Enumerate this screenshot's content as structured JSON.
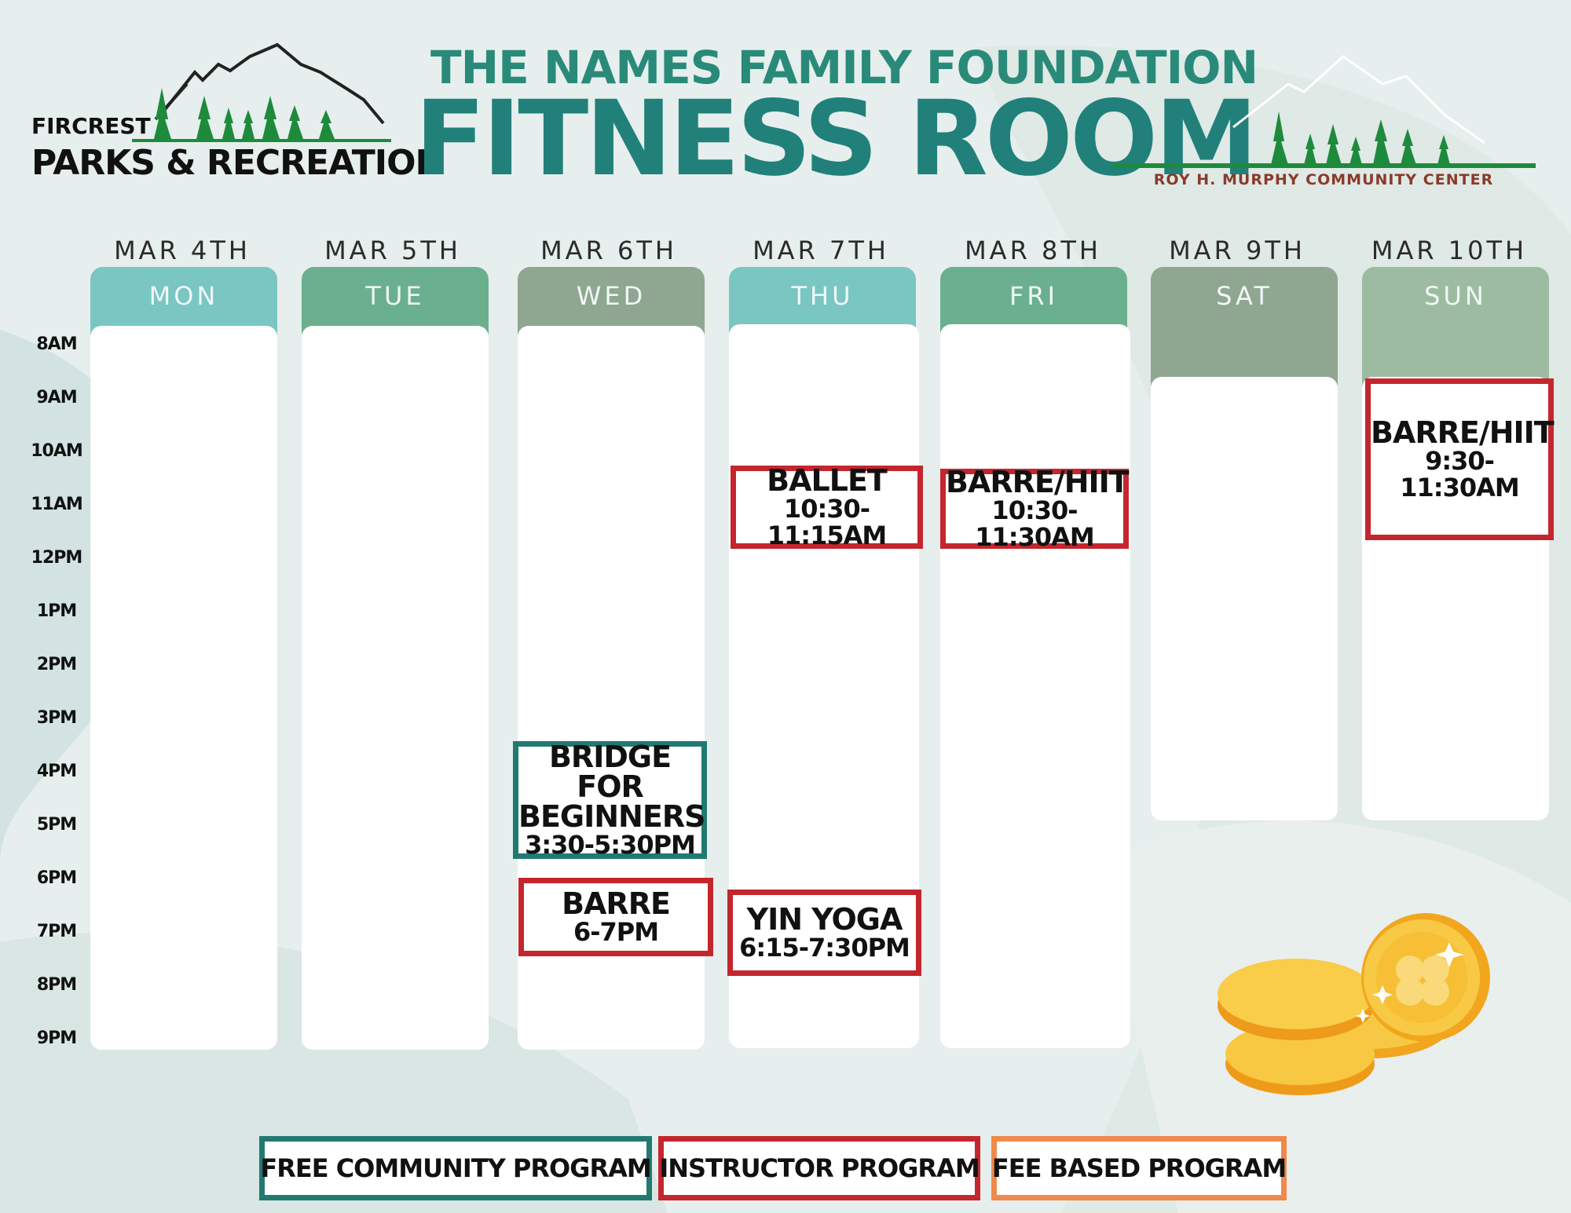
{
  "header": {
    "left_logo": {
      "line1": "FIRCREST",
      "line2": "PARKS & RECREATION"
    },
    "title_line1": "THE NAMES FAMILY FOUNDATION",
    "title_line2": "FITNESS ROOM",
    "right_logo": {
      "name": "ROY H. MURPHY COMMUNITY CENTER"
    }
  },
  "days": [
    {
      "date": "MAR 4TH",
      "day": "MON",
      "color": "#79c6c2"
    },
    {
      "date": "MAR 5TH",
      "day": "TUE",
      "color": "#6bb08e"
    },
    {
      "date": "MAR 6TH",
      "day": "WED",
      "color": "#8fa690"
    },
    {
      "date": "MAR 7TH",
      "day": "THU",
      "color": "#79c6c2"
    },
    {
      "date": "MAR 8TH",
      "day": "FRI",
      "color": "#6bb08e"
    },
    {
      "date": "MAR 9TH",
      "day": "SAT",
      "color": "#8fa690"
    },
    {
      "date": "MAR 10TH",
      "day": "SUN",
      "color": "#9dbba0"
    }
  ],
  "times": [
    "8AM",
    "9AM",
    "10AM",
    "11AM",
    "12PM",
    "1PM",
    "2PM",
    "3PM",
    "4PM",
    "5PM",
    "6PM",
    "7PM",
    "8PM",
    "9PM"
  ],
  "events": [
    {
      "day": "THU",
      "lines": [
        "BALLET"
      ],
      "time": "10:30-11:15AM",
      "type": "instructor"
    },
    {
      "day": "FRI",
      "lines": [
        "BARRE/HIIT"
      ],
      "time": "10:30-11:30AM",
      "type": "instructor"
    },
    {
      "day": "SUN",
      "lines": [
        "BARRE/HIIT"
      ],
      "time": "9:30-11:30AM",
      "type": "instructor"
    },
    {
      "day": "WED",
      "lines": [
        "BRIDGE FOR",
        "BEGINNERS"
      ],
      "time": "3:30-5:30PM",
      "type": "free"
    },
    {
      "day": "WED",
      "lines": [
        "BARRE"
      ],
      "time": "6-7PM",
      "type": "instructor"
    },
    {
      "day": "THU",
      "lines": [
        "YIN YOGA"
      ],
      "time": "6:15-7:30PM",
      "type": "instructor"
    }
  ],
  "legend": {
    "free": "FREE COMMUNITY PROGRAM",
    "instructor": "INSTRUCTOR PROGRAM",
    "fee": "FEE BASED PROGRAM"
  },
  "colors": {
    "instructor_border": "#c4262e",
    "free_border": "#217a72",
    "fee_border": "#ef8a4a",
    "title": "#22807a"
  }
}
